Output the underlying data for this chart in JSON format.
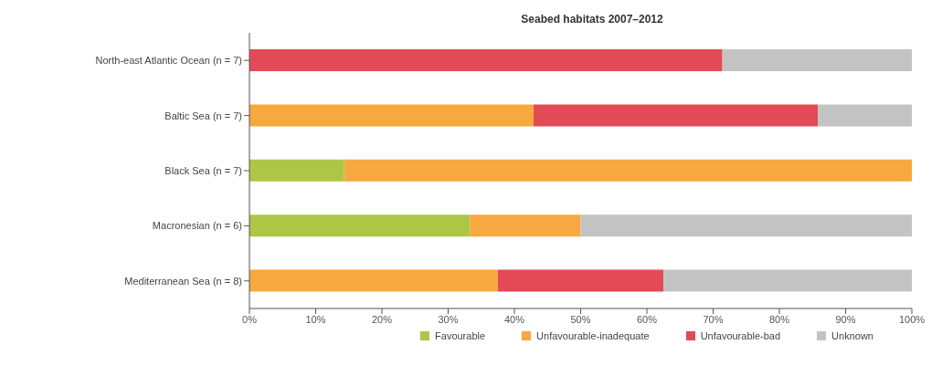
{
  "chart_data": {
    "type": "bar",
    "orientation": "horizontal",
    "stacked": true,
    "title": "Seabed habitats 2007–2012",
    "categories": [
      "North-east Atlantic Ocean (n = 7)",
      "Baltic Sea (n = 7)",
      "Black Sea (n = 7)",
      "Macronesian (n = 6)",
      "Mediterranean Sea (n = 8)"
    ],
    "series": [
      {
        "name": "Favourable",
        "color": "#adc645",
        "values": [
          0,
          0,
          14.3,
          33.3,
          0
        ]
      },
      {
        "name": "Unfavourable-inadequate",
        "color": "#f7a83e",
        "values": [
          0,
          42.9,
          85.7,
          16.7,
          37.5
        ]
      },
      {
        "name": "Unfavourable-bad",
        "color": "#e24a56",
        "values": [
          71.4,
          42.9,
          0,
          0,
          25
        ]
      },
      {
        "name": "Unknown",
        "color": "#c3c3c3",
        "values": [
          28.6,
          14.3,
          0,
          50,
          37.5
        ]
      }
    ],
    "xlim": [
      0,
      100
    ],
    "xticks": [
      {
        "value": 0,
        "label": "0%"
      },
      {
        "value": 10,
        "label": "10%"
      },
      {
        "value": 20,
        "label": "20%"
      },
      {
        "value": 30,
        "label": "30%"
      },
      {
        "value": 40,
        "label": "40%"
      },
      {
        "value": 50,
        "label": "50%"
      },
      {
        "value": 60,
        "label": "60%"
      },
      {
        "value": 70,
        "label": "70%"
      },
      {
        "value": 80,
        "label": "80%"
      },
      {
        "value": 90,
        "label": "90%"
      },
      {
        "value": 100,
        "label": "100%"
      }
    ],
    "grid": false,
    "legend": "bottom"
  }
}
